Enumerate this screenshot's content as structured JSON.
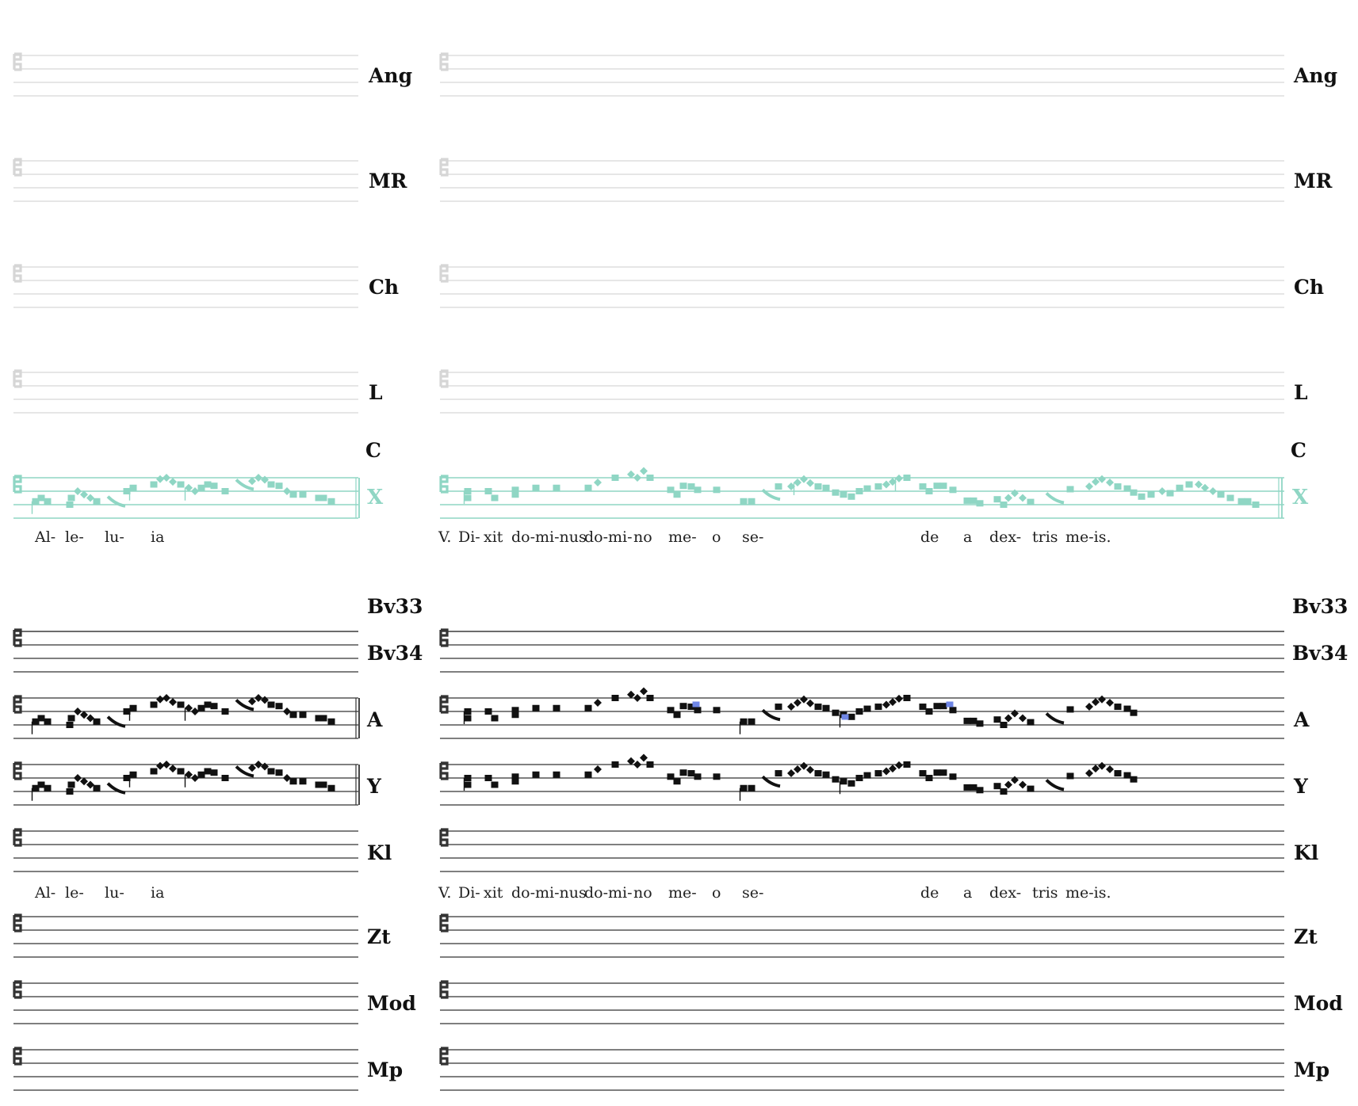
{
  "systems": [
    {
      "name": "system-1",
      "staves": [
        {
          "siglum": "Ang",
          "style": "faded",
          "notated": false
        },
        {
          "siglum": "MR",
          "style": "faded",
          "notated": false
        },
        {
          "siglum": "Ch",
          "style": "faded",
          "notated": false
        },
        {
          "siglum": "L",
          "style": "faded",
          "notated": false
        },
        {
          "siglum": "C",
          "style": "label-only",
          "notated": false
        },
        {
          "siglum": "X",
          "style": "teal",
          "notated": true
        }
      ],
      "lyrics_left": [
        "Al-",
        "le-",
        "lu-",
        "ia"
      ],
      "lyrics_right": [
        "V.",
        "Di-",
        "xit",
        "do-mi-nus",
        "do-mi-",
        "no",
        "me-",
        "o",
        "se-",
        "de",
        "a",
        "dex-",
        "tris",
        "me-is."
      ]
    },
    {
      "name": "system-2",
      "staves": [
        {
          "siglum": "Bv33",
          "style": "label-only",
          "notated": false
        },
        {
          "siglum": "Bv34",
          "style": "black",
          "notated": false
        },
        {
          "siglum": "A",
          "style": "black",
          "notated": true
        },
        {
          "siglum": "Y",
          "style": "black",
          "notated": true
        },
        {
          "siglum": "Kl",
          "style": "black",
          "notated": false
        }
      ],
      "lyrics_left": [
        "Al-",
        "le-",
        "lu-",
        "ia"
      ],
      "lyrics_right": [
        "V.",
        "Di-",
        "xit",
        "do-mi-nus",
        "do-mi-",
        "no",
        "me-",
        "o",
        "se-",
        "de",
        "a",
        "dex-",
        "tris",
        "me-is."
      ],
      "staves_after": [
        {
          "siglum": "Zt",
          "style": "black",
          "notated": false
        },
        {
          "siglum": "Mod",
          "style": "black",
          "notated": false
        },
        {
          "siglum": "Mp",
          "style": "black",
          "notated": false
        }
      ]
    }
  ],
  "colors": {
    "faded_staff": "#d6d6d6",
    "teal": "#8fd6c4",
    "black_staff": "#333333",
    "highlight": "#6f86e6"
  }
}
